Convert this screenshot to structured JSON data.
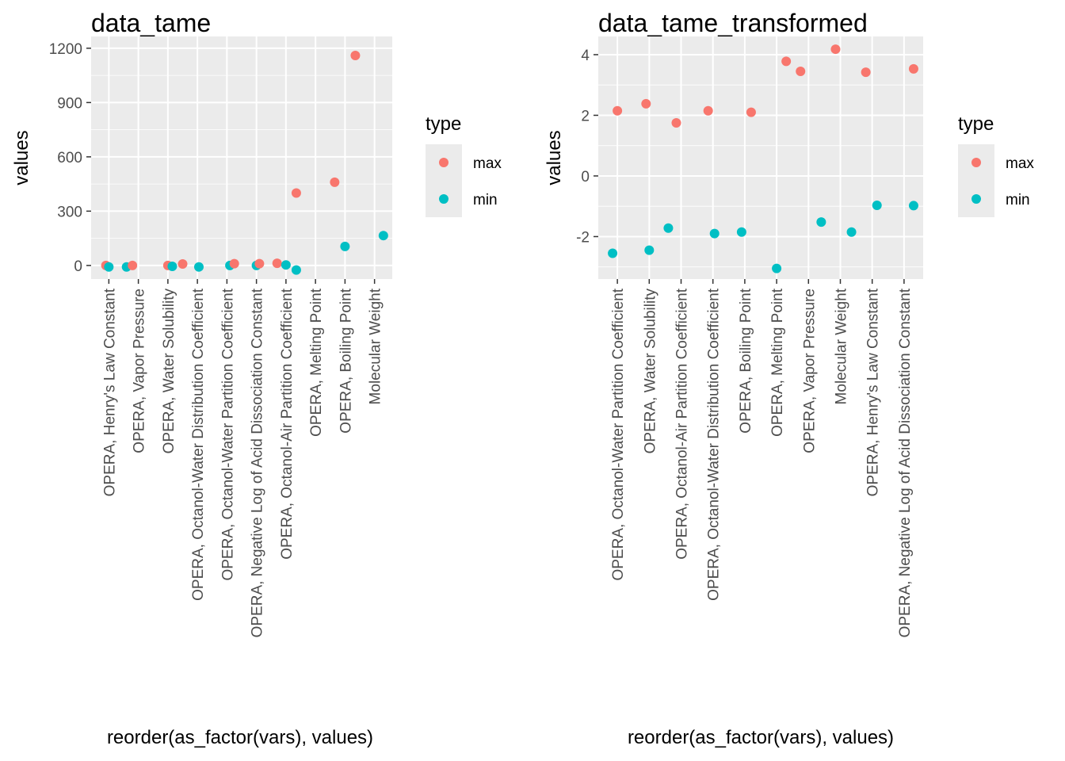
{
  "chart_data": [
    {
      "type": "scatter",
      "title": "data_tame",
      "xlabel": "reorder(as_factor(vars), values)",
      "ylabel": "values",
      "yticks": [
        0,
        300,
        600,
        900,
        1200
      ],
      "ylim": [
        -75,
        1265
      ],
      "grid": true,
      "legend": {
        "title": "type",
        "position": "right",
        "entries": [
          "max",
          "min"
        ]
      },
      "colors": {
        "max": "#F8766D",
        "min": "#00BFC4"
      },
      "categories": [
        "OPERA, Henry's Law Constant",
        "OPERA, Vapor Pressure",
        "OPERA, Water Solubility",
        "OPERA, Octanol-Water Distribution Coefficient",
        "OPERA, Octanol-Water Partition Coefficient",
        "OPERA, Negative Log of Acid Dissociation Constant",
        "OPERA, Octanol-Air Partition Coefficient",
        "OPERA, Melting Point",
        "OPERA, Boiling Point",
        "Molecular Weight"
      ],
      "points": [
        {
          "type": "max",
          "x": 0.9,
          "y": 0
        },
        {
          "type": "min",
          "x": 1.0,
          "y": -8
        },
        {
          "type": "min",
          "x": 1.6,
          "y": -8
        },
        {
          "type": "max",
          "x": 1.8,
          "y": 0
        },
        {
          "type": "max",
          "x": 3.0,
          "y": 0
        },
        {
          "type": "min",
          "x": 3.15,
          "y": -5
        },
        {
          "type": "max",
          "x": 3.5,
          "y": 8
        },
        {
          "type": "min",
          "x": 4.05,
          "y": -8
        },
        {
          "type": "min",
          "x": 5.1,
          "y": 0
        },
        {
          "type": "max",
          "x": 5.25,
          "y": 10
        },
        {
          "type": "min",
          "x": 6.0,
          "y": 0
        },
        {
          "type": "max",
          "x": 6.1,
          "y": 10
        },
        {
          "type": "max",
          "x": 6.7,
          "y": 12
        },
        {
          "type": "min",
          "x": 7.0,
          "y": 3
        },
        {
          "type": "min",
          "x": 7.35,
          "y": -25
        },
        {
          "type": "max",
          "x": 7.35,
          "y": 400
        },
        {
          "type": "max",
          "x": 8.65,
          "y": 460
        },
        {
          "type": "min",
          "x": 9.0,
          "y": 105
        },
        {
          "type": "max",
          "x": 9.35,
          "y": 1160
        },
        {
          "type": "min",
          "x": 10.3,
          "y": 165
        }
      ]
    },
    {
      "type": "scatter",
      "title": "data_tame_transformed",
      "xlabel": "reorder(as_factor(vars), values)",
      "ylabel": "values",
      "yticks": [
        -2,
        0,
        2,
        4
      ],
      "ylim": [
        -3.4,
        4.6
      ],
      "grid": true,
      "legend": {
        "title": "type",
        "position": "right",
        "entries": [
          "max",
          "min"
        ]
      },
      "colors": {
        "max": "#F8766D",
        "min": "#00BFC4"
      },
      "categories": [
        "OPERA, Octanol-Water Partition Coefficient",
        "OPERA, Water Solubility",
        "OPERA, Octanol-Air Partition Coefficient",
        "OPERA, Octanol-Water Distribution Coefficient",
        "OPERA, Boiling Point",
        "OPERA, Melting Point",
        "OPERA, Vapor Pressure",
        "Molecular Weight",
        "OPERA, Henry's Law Constant",
        "OPERA, Negative Log of Acid Dissociation Constant"
      ],
      "points": [
        {
          "type": "min",
          "x": 0.85,
          "y": -2.55
        },
        {
          "type": "max",
          "x": 1.0,
          "y": 2.15
        },
        {
          "type": "min",
          "x": 2.0,
          "y": -2.45
        },
        {
          "type": "max",
          "x": 1.9,
          "y": 2.38
        },
        {
          "type": "min",
          "x": 2.6,
          "y": -1.72
        },
        {
          "type": "max",
          "x": 2.85,
          "y": 1.75
        },
        {
          "type": "max",
          "x": 3.85,
          "y": 2.15
        },
        {
          "type": "min",
          "x": 4.05,
          "y": -1.9
        },
        {
          "type": "min",
          "x": 4.9,
          "y": -1.85
        },
        {
          "type": "max",
          "x": 5.2,
          "y": 2.1
        },
        {
          "type": "min",
          "x": 6.0,
          "y": -3.05
        },
        {
          "type": "max",
          "x": 6.3,
          "y": 3.78
        },
        {
          "type": "max",
          "x": 6.75,
          "y": 3.45
        },
        {
          "type": "min",
          "x": 7.4,
          "y": -1.52
        },
        {
          "type": "max",
          "x": 7.85,
          "y": 4.18
        },
        {
          "type": "min",
          "x": 8.35,
          "y": -1.85
        },
        {
          "type": "max",
          "x": 8.8,
          "y": 3.42
        },
        {
          "type": "min",
          "x": 9.15,
          "y": -0.97
        },
        {
          "type": "max",
          "x": 10.3,
          "y": 3.53
        },
        {
          "type": "min",
          "x": 10.3,
          "y": -0.98
        }
      ]
    }
  ]
}
